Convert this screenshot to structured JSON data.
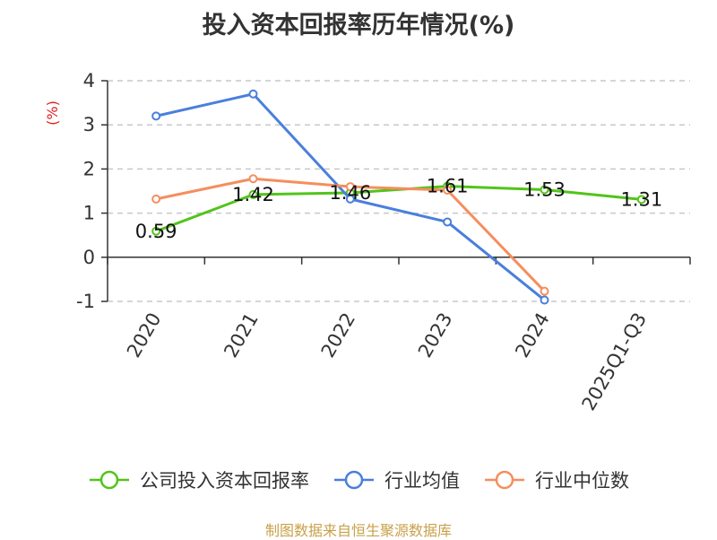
{
  "chart_data": {
    "type": "line",
    "title": "投入资本回报率历年情况(%)",
    "ylabel": "(%)",
    "categories": [
      "2020",
      "2021",
      "2022",
      "2023",
      "2024",
      "2025Q1-Q3"
    ],
    "ylim": [
      -1,
      4
    ],
    "yticks": [
      "4",
      "3",
      "2",
      "1",
      "0",
      "-1"
    ],
    "grid": true,
    "legend_position": "bottom",
    "series": [
      {
        "name": "公司投入资本回报率",
        "color": "#52c41a",
        "values": [
          0.59,
          1.42,
          1.46,
          1.61,
          1.53,
          1.31
        ],
        "labels": [
          "0.59",
          "1.42",
          "1.46",
          "1.61",
          "1.53",
          "1.31"
        ]
      },
      {
        "name": "行业均值",
        "color": "#4a7fdc",
        "values": [
          3.2,
          3.7,
          1.32,
          0.8,
          -0.97,
          null
        ]
      },
      {
        "name": "行业中位数",
        "color": "#f58e5e",
        "values": [
          1.32,
          1.78,
          1.6,
          1.52,
          -0.77,
          null
        ]
      }
    ]
  },
  "source_note": "制图数据来自恒生聚源数据库"
}
